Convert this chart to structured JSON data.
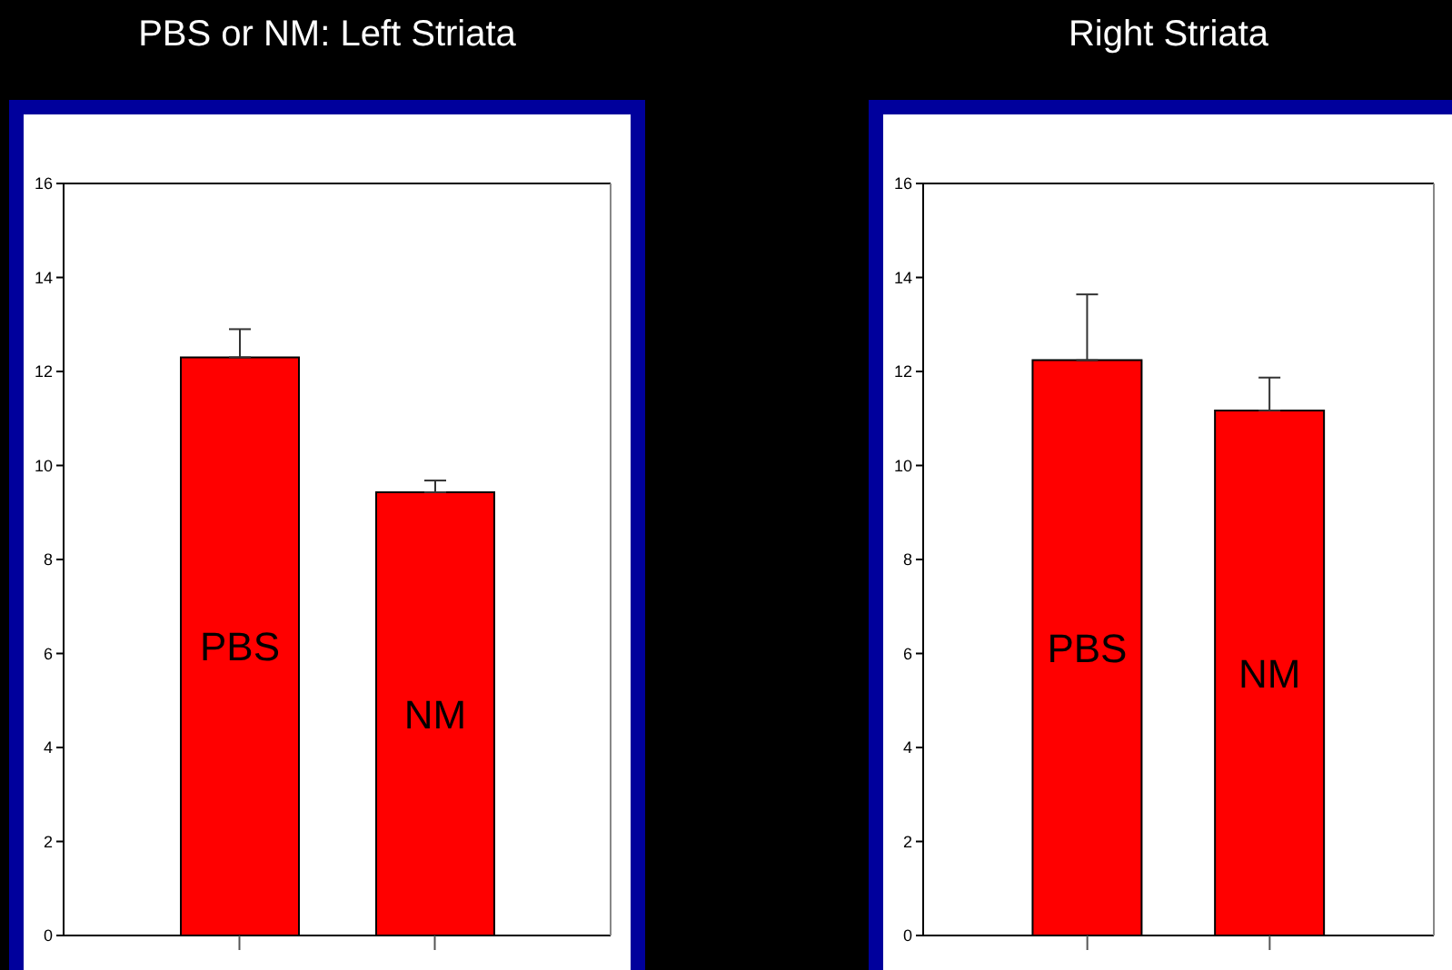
{
  "chart_data": [
    {
      "type": "bar",
      "title": "PBS or NM: Left Striata",
      "categories": [
        "PBS",
        "NM"
      ],
      "values": [
        12.3,
        9.43
      ],
      "errors": [
        0.6,
        0.25
      ],
      "color": "#ff0000",
      "ylim": [
        0,
        16
      ],
      "yticks": [
        0,
        2,
        4,
        6,
        8,
        10,
        12,
        14,
        16
      ],
      "grid": false,
      "legend": false,
      "tick_labels": "y"
    },
    {
      "type": "bar",
      "title": "Right Striata",
      "categories": [
        "PBS",
        "NM"
      ],
      "values": [
        12.24,
        11.17
      ],
      "errors": [
        1.4,
        0.7
      ],
      "color": "#ff0000",
      "ylim": [
        0,
        16
      ],
      "yticks": [
        0,
        2,
        4,
        6,
        8,
        10,
        12,
        14,
        16
      ],
      "grid": false,
      "legend": false,
      "tick_labels": "y"
    }
  ]
}
